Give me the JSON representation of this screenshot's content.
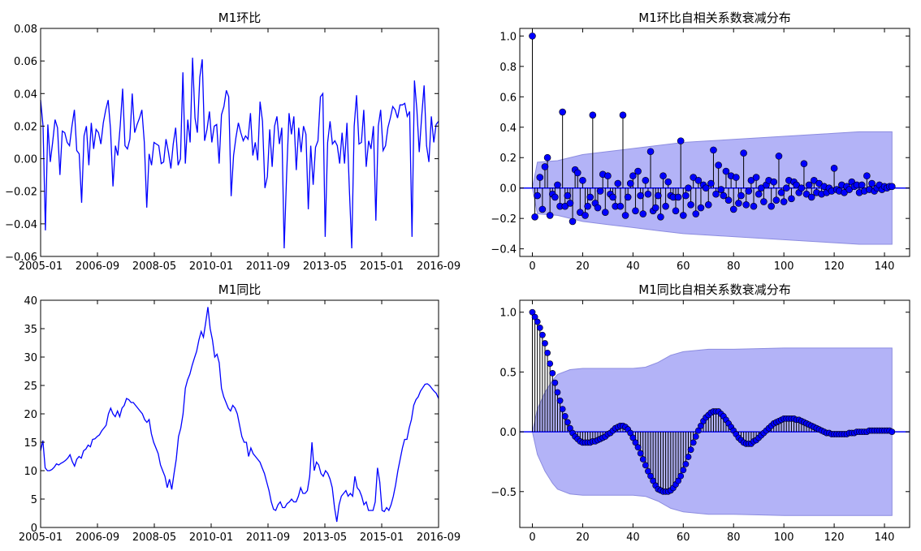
{
  "chart_data": [
    {
      "type": "line",
      "title": "M1环比",
      "ylim": [
        -0.06,
        0.08
      ],
      "yticks": [
        -0.06,
        -0.04,
        -0.02,
        0.0,
        0.02,
        0.04,
        0.06,
        0.08
      ],
      "ytick_labels": [
        "−0.06",
        "−0.04",
        "−0.02",
        "0.00",
        "0.02",
        "0.04",
        "0.06",
        "0.08"
      ],
      "xtick_labels": [
        "2005-01",
        "2006-09",
        "2008-05",
        "2010-01",
        "2011-09",
        "2013-05",
        "2015-01",
        "2016-09"
      ],
      "series": [
        {
          "color": "#0000ff",
          "values": [
            0.036,
            0.02,
            -0.044,
            0.021,
            -0.002,
            0.01,
            0.024,
            0.019,
            -0.01,
            0.017,
            0.016,
            0.01,
            0.008,
            0.02,
            0.03,
            0.005,
            0.003,
            -0.027,
            0.014,
            0.02,
            -0.004,
            0.022,
            0.006,
            0.018,
            0.016,
            0.009,
            0.022,
            0.03,
            0.036,
            0.018,
            -0.017,
            0.008,
            0.002,
            0.02,
            0.043,
            0.008,
            0.006,
            0.012,
            0.04,
            0.016,
            0.021,
            0.025,
            0.03,
            0.01,
            -0.03,
            0.003,
            -0.004,
            0.01,
            0.009,
            0.008,
            -0.003,
            -0.002,
            0.012,
            0.004,
            -0.006,
            0.009,
            0.019,
            -0.004,
            0.0,
            0.053,
            -0.003,
            0.024,
            0.01,
            0.062,
            0.025,
            0.016,
            0.05,
            0.061,
            0.011,
            0.018,
            0.029,
            0.01,
            0.02,
            0.021,
            -0.003,
            0.027,
            0.032,
            0.042,
            0.038,
            -0.023,
            0.002,
            0.013,
            0.022,
            0.016,
            0.011,
            0.014,
            0.012,
            0.028,
            0.002,
            0.01,
            -0.001,
            0.035,
            0.023,
            -0.018,
            -0.011,
            0.018,
            -0.005,
            0.02,
            0.026,
            0.009,
            0.019,
            -0.055,
            -0.01,
            0.028,
            0.015,
            0.026,
            -0.007,
            0.019,
            0.004,
            0.02,
            0.015,
            -0.031,
            0.008,
            -0.016,
            0.007,
            0.011,
            0.038,
            0.04,
            -0.048,
            0.01,
            0.023,
            0.009,
            0.011,
            0.008,
            -0.003,
            0.016,
            -0.003,
            0.022,
            -0.018,
            -0.055,
            0.02,
            0.039,
            0.009,
            0.01,
            0.03,
            -0.005,
            0.011,
            0.006,
            0.02,
            -0.038,
            0.02,
            0.03,
            0.005,
            0.008,
            0.019,
            0.025,
            0.032,
            0.03,
            0.025,
            0.033,
            0.033,
            0.034,
            0.026,
            0.029,
            -0.048,
            0.048,
            0.03,
            0.004,
            0.026,
            0.045,
            0.008,
            -0.002,
            0.026,
            0.01,
            0.021,
            0.023
          ]
        }
      ]
    },
    {
      "type": "stem",
      "title": "M1环比自相关系数衰减分布",
      "ylim": [
        -0.45,
        1.05
      ],
      "xlim": [
        -5,
        150
      ],
      "yticks": [
        -0.4,
        -0.2,
        0.0,
        0.2,
        0.4,
        0.6,
        0.8,
        1.0
      ],
      "ytick_labels": [
        "−0.4",
        "−0.2",
        "0.0",
        "0.2",
        "0.4",
        "0.6",
        "0.8",
        "1.0"
      ],
      "xticks": [
        0,
        20,
        40,
        60,
        80,
        100,
        120,
        140
      ],
      "xtick_labels": [
        "0",
        "20",
        "40",
        "60",
        "80",
        "100",
        "120",
        "140"
      ],
      "acf": [
        1.0,
        -0.19,
        -0.05,
        0.07,
        -0.14,
        0.14,
        0.2,
        -0.18,
        -0.04,
        -0.06,
        0.02,
        -0.12,
        0.5,
        -0.12,
        -0.05,
        -0.1,
        -0.22,
        0.12,
        0.1,
        -0.16,
        0.05,
        -0.18,
        -0.12,
        -0.06,
        0.48,
        -0.1,
        -0.13,
        -0.02,
        0.09,
        -0.16,
        0.08,
        -0.04,
        -0.06,
        -0.12,
        0.03,
        -0.12,
        0.48,
        -0.18,
        -0.06,
        0.03,
        0.08,
        -0.15,
        0.11,
        -0.05,
        -0.17,
        0.05,
        -0.04,
        0.24,
        -0.15,
        -0.13,
        -0.05,
        -0.19,
        0.08,
        -0.12,
        0.04,
        -0.05,
        -0.06,
        -0.15,
        -0.06,
        0.31,
        -0.18,
        -0.05,
        0.0,
        -0.11,
        0.07,
        -0.17,
        0.05,
        -0.13,
        0.02,
        0.0,
        -0.11,
        0.03,
        0.25,
        -0.04,
        0.15,
        -0.01,
        -0.05,
        0.11,
        -0.08,
        0.08,
        -0.14,
        0.07,
        -0.1,
        -0.05,
        0.23,
        -0.11,
        -0.02,
        0.05,
        -0.12,
        0.07,
        -0.04,
        0.0,
        -0.09,
        0.02,
        0.05,
        -0.12,
        0.04,
        -0.08,
        0.21,
        -0.03,
        -0.09,
        0.0,
        0.05,
        -0.07,
        0.04,
        0.02,
        -0.03,
        0.0,
        0.16,
        -0.04,
        0.02,
        -0.06,
        0.05,
        -0.03,
        0.03,
        -0.04,
        0.01,
        -0.03,
        0.0,
        -0.02,
        0.13,
        -0.01,
        -0.02,
        0.02,
        -0.03,
        0.01,
        -0.01,
        0.04,
        0.01,
        0.02,
        -0.03,
        0.02,
        -0.02,
        0.08,
        -0.01,
        0.03,
        -0.02,
        0.0,
        0.02,
        -0.01,
        0.01,
        0.0,
        0.01,
        0.01
      ],
      "confidence_band": {
        "x": [
          0,
          2,
          10,
          20,
          30,
          40,
          50,
          60,
          70,
          80,
          90,
          100,
          110,
          120,
          130,
          143
        ],
        "upper": [
          0.0,
          0.17,
          0.18,
          0.22,
          0.24,
          0.26,
          0.28,
          0.3,
          0.31,
          0.32,
          0.33,
          0.34,
          0.35,
          0.36,
          0.37,
          0.37
        ]
      },
      "band_color": "#b3b3f7",
      "marker_color": "#0000ff"
    },
    {
      "type": "line",
      "title": "M1同比",
      "ylim": [
        0,
        40
      ],
      "yticks": [
        0,
        5,
        10,
        15,
        20,
        25,
        30,
        35,
        40
      ],
      "ytick_labels": [
        "0",
        "5",
        "10",
        "15",
        "20",
        "25",
        "30",
        "35",
        "40"
      ],
      "xtick_labels": [
        "2005-01",
        "2006-09",
        "2008-05",
        "2010-01",
        "2011-09",
        "2013-05",
        "2015-01",
        "2016-09"
      ],
      "series": [
        {
          "color": "#0000ff",
          "values": [
            13.5,
            15.3,
            10.5,
            10.0,
            10.0,
            10.2,
            10.6,
            11.2,
            11.0,
            11.3,
            11.5,
            11.8,
            12.2,
            12.8,
            11.6,
            10.8,
            12.0,
            12.5,
            12.2,
            13.5,
            13.8,
            14.5,
            14.2,
            15.5,
            15.6,
            16.0,
            16.3,
            17.0,
            17.5,
            18.0,
            20.0,
            21.0,
            20.0,
            19.5,
            20.5,
            19.5,
            21.0,
            21.5,
            22.7,
            22.5,
            22.0,
            22.0,
            21.5,
            21.0,
            20.5,
            20.0,
            19.0,
            18.5,
            19.0,
            16.5,
            15.0,
            14.0,
            13.0,
            11.0,
            10.0,
            9.0,
            7.0,
            8.5,
            6.7,
            9.5,
            12.0,
            16.0,
            17.5,
            20.0,
            24.5,
            26.0,
            27.0,
            28.5,
            29.8,
            31.0,
            33.0,
            34.5,
            33.5,
            36.0,
            38.8,
            35.0,
            33.0,
            30.0,
            30.5,
            29.0,
            24.5,
            23.0,
            22.0,
            21.0,
            20.5,
            21.5,
            21.0,
            20.0,
            18.0,
            16.0,
            15.0,
            15.0,
            12.5,
            14.0,
            13.0,
            12.5,
            12.0,
            11.5,
            10.5,
            9.5,
            8.0,
            6.5,
            4.5,
            3.2,
            3.0,
            4.0,
            4.5,
            3.5,
            3.5,
            4.2,
            4.5,
            5.0,
            4.5,
            4.5,
            5.5,
            7.0,
            6.0,
            6.0,
            6.5,
            9.0,
            15.0,
            10.0,
            11.5,
            11.0,
            9.5,
            9.0,
            10.0,
            9.5,
            8.5,
            7.0,
            3.5,
            1.0,
            4.0,
            5.5,
            6.0,
            6.5,
            5.5,
            6.0,
            5.5,
            9.0,
            7.0,
            6.5,
            5.5,
            4.0,
            4.5,
            3.0,
            3.0,
            3.0,
            4.5,
            10.5,
            8.0,
            3.0,
            2.8,
            3.5,
            3.0,
            4.0,
            5.5,
            7.5,
            10.0,
            12.0,
            14.0,
            15.5,
            15.5,
            17.5,
            19.0,
            21.5,
            22.5,
            23.0,
            24.0,
            24.6,
            25.2,
            25.3,
            25.0,
            24.5,
            24.0,
            23.6,
            22.7
          ]
        }
      ]
    },
    {
      "type": "stem",
      "title": "M1同比自相关系数衰减分布",
      "ylim": [
        -0.8,
        1.1
      ],
      "xlim": [
        -5,
        150
      ],
      "yticks": [
        -0.5,
        0.0,
        0.5,
        1.0
      ],
      "ytick_labels": [
        "−0.5",
        "0.0",
        "0.5",
        "1.0"
      ],
      "xticks": [
        0,
        20,
        40,
        60,
        80,
        100,
        120,
        140
      ],
      "xtick_labels": [
        "0",
        "20",
        "40",
        "60",
        "80",
        "100",
        "120",
        "140"
      ],
      "acf": [
        1.0,
        0.96,
        0.92,
        0.87,
        0.81,
        0.74,
        0.66,
        0.57,
        0.49,
        0.41,
        0.33,
        0.26,
        0.19,
        0.13,
        0.08,
        0.03,
        -0.01,
        -0.04,
        -0.06,
        -0.08,
        -0.09,
        -0.09,
        -0.09,
        -0.09,
        -0.08,
        -0.08,
        -0.07,
        -0.06,
        -0.05,
        -0.04,
        -0.02,
        -0.01,
        0.01,
        0.03,
        0.04,
        0.05,
        0.05,
        0.04,
        0.02,
        -0.01,
        -0.05,
        -0.09,
        -0.13,
        -0.18,
        -0.23,
        -0.28,
        -0.33,
        -0.37,
        -0.41,
        -0.45,
        -0.48,
        -0.49,
        -0.5,
        -0.5,
        -0.5,
        -0.49,
        -0.47,
        -0.44,
        -0.41,
        -0.37,
        -0.32,
        -0.27,
        -0.21,
        -0.15,
        -0.09,
        -0.04,
        0.01,
        0.05,
        0.09,
        0.12,
        0.14,
        0.16,
        0.17,
        0.17,
        0.17,
        0.15,
        0.13,
        0.1,
        0.07,
        0.04,
        0.01,
        -0.02,
        -0.05,
        -0.07,
        -0.09,
        -0.1,
        -0.1,
        -0.1,
        -0.08,
        -0.07,
        -0.05,
        -0.03,
        -0.01,
        0.01,
        0.03,
        0.05,
        0.07,
        0.08,
        0.09,
        0.1,
        0.11,
        0.11,
        0.11,
        0.11,
        0.11,
        0.1,
        0.1,
        0.09,
        0.08,
        0.07,
        0.06,
        0.05,
        0.04,
        0.03,
        0.02,
        0.01,
        0.0,
        -0.01,
        -0.01,
        -0.02,
        -0.02,
        -0.02,
        -0.02,
        -0.02,
        -0.02,
        -0.02,
        -0.01,
        -0.01,
        -0.01,
        0.0,
        0.0,
        0.0,
        0.0,
        0.0,
        0.01,
        0.01,
        0.01,
        0.01,
        0.01,
        0.01,
        0.01,
        0.01,
        0.01,
        0.0
      ],
      "confidence_band": {
        "x": [
          0,
          2,
          5,
          8,
          10,
          15,
          20,
          30,
          40,
          45,
          50,
          55,
          60,
          70,
          80,
          100,
          120,
          143
        ],
        "upper": [
          0.0,
          0.19,
          0.33,
          0.43,
          0.48,
          0.52,
          0.53,
          0.53,
          0.53,
          0.54,
          0.58,
          0.64,
          0.67,
          0.69,
          0.69,
          0.7,
          0.7,
          0.7
        ]
      },
      "band_color": "#b3b3f7",
      "marker_color": "#0000ff"
    }
  ]
}
